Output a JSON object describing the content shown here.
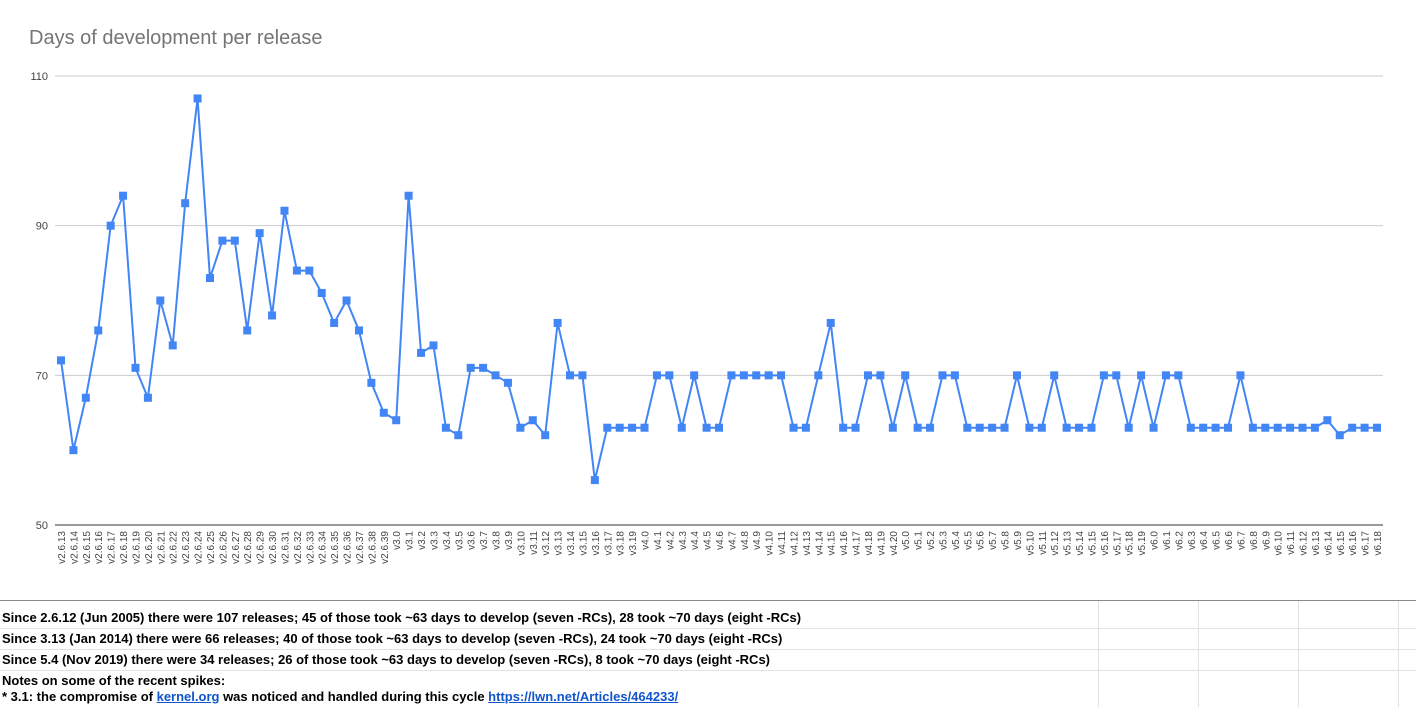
{
  "chart_data": {
    "type": "line",
    "title": "Days of development per release",
    "ylim": [
      50,
      110
    ],
    "yticks": [
      50,
      70,
      90,
      110
    ],
    "grid": true,
    "legend": "none",
    "line_color": "#4285f4",
    "categories": [
      "v2.6.13",
      "v2.6.14",
      "v2.6.15",
      "v2.6.16",
      "v2.6.17",
      "v2.6.18",
      "v2.6.19",
      "v2.6.20",
      "v2.6.21",
      "v2.6.22",
      "v2.6.23",
      "v2.6.24",
      "v2.6.25",
      "v2.6.26",
      "v2.6.27",
      "v2.6.28",
      "v2.6.29",
      "v2.6.30",
      "v2.6.31",
      "v2.6.32",
      "v2.6.33",
      "v2.6.34",
      "v2.6.35",
      "v2.6.36",
      "v2.6.37",
      "v2.6.38",
      "v2.6.39",
      "v3.0",
      "v3.1",
      "v3.2",
      "v3.3",
      "v3.4",
      "v3.5",
      "v3.6",
      "v3.7",
      "v3.8",
      "v3.9",
      "v3.10",
      "v3.11",
      "v3.12",
      "v3.13",
      "v3.14",
      "v3.15",
      "v3.16",
      "v3.17",
      "v3.18",
      "v3.19",
      "v4.0",
      "v4.1",
      "v4.2",
      "v4.3",
      "v4.4",
      "v4.5",
      "v4.6",
      "v4.7",
      "v4.8",
      "v4.9",
      "v4.10",
      "v4.11",
      "v4.12",
      "v4.13",
      "v4.14",
      "v4.15",
      "v4.16",
      "v4.17",
      "v4.18",
      "v4.19",
      "v4.20",
      "v5.0",
      "v5.1",
      "v5.2",
      "v5.3",
      "v5.4",
      "v5.5",
      "v5.6",
      "v5.7",
      "v5.8",
      "v5.9",
      "v5.10",
      "v5.11",
      "v5.12",
      "v5.13",
      "v5.14",
      "v5.15",
      "v5.16",
      "v5.17",
      "v5.18",
      "v5.19",
      "v6.0",
      "v6.1",
      "v6.2",
      "v6.3",
      "v6.4",
      "v6.5",
      "v6.6",
      "v6.7",
      "v6.8",
      "v6.9",
      "v6.10",
      "v6.11",
      "v6.12",
      "v6.13",
      "v6.14",
      "v6.15",
      "v6.16",
      "v6.17",
      "v6.18"
    ],
    "series": [
      {
        "values": [
          72,
          60,
          67,
          76,
          90,
          94,
          71,
          67,
          80,
          74,
          93,
          107,
          83,
          88,
          88,
          76,
          89,
          78,
          92,
          84,
          84,
          81,
          77,
          80,
          76,
          69,
          65,
          64,
          94,
          73,
          74,
          63,
          62,
          71,
          71,
          70,
          69,
          63,
          64,
          62,
          77,
          70,
          70,
          56,
          63,
          63,
          63,
          63,
          70,
          70,
          63,
          70,
          63,
          63,
          70,
          70,
          70,
          70,
          70,
          63,
          63,
          70,
          77,
          63,
          63,
          70,
          70,
          63,
          70,
          63,
          63,
          70,
          70,
          63,
          63,
          63,
          63,
          70,
          63,
          63,
          70,
          63,
          63,
          63,
          70,
          70,
          63,
          70,
          63,
          70,
          70,
          63,
          63,
          63,
          63,
          70,
          63,
          63,
          63,
          63,
          63,
          63,
          64,
          62,
          63,
          63,
          63
        ]
      }
    ]
  },
  "notes": {
    "row1": "Since 2.6.12 (Jun 2005) there were 107 releases; 45 of those took ~63 days to develop (seven -RCs), 28 took ~70 days (eight -RCs)",
    "row2": "Since 3.13 (Jan 2014) there were 66 releases; 40 of those took ~63 days to develop (seven -RCs), 24 took ~70 days (eight -RCs)",
    "row3": "Since 5.4 (Nov 2019) there were 34 releases; 26 of those took ~63 days to develop (seven -RCs), 8 took ~70 days (eight -RCs)",
    "heading": "Notes on some of the recent spikes:",
    "spike_prefix": "* 3.1: the compromise of ",
    "spike_link1": "kernel.org",
    "spike_middle": " was noticed and handled during this cycle ",
    "spike_link2": "https://lwn.net/Articles/464233/"
  }
}
